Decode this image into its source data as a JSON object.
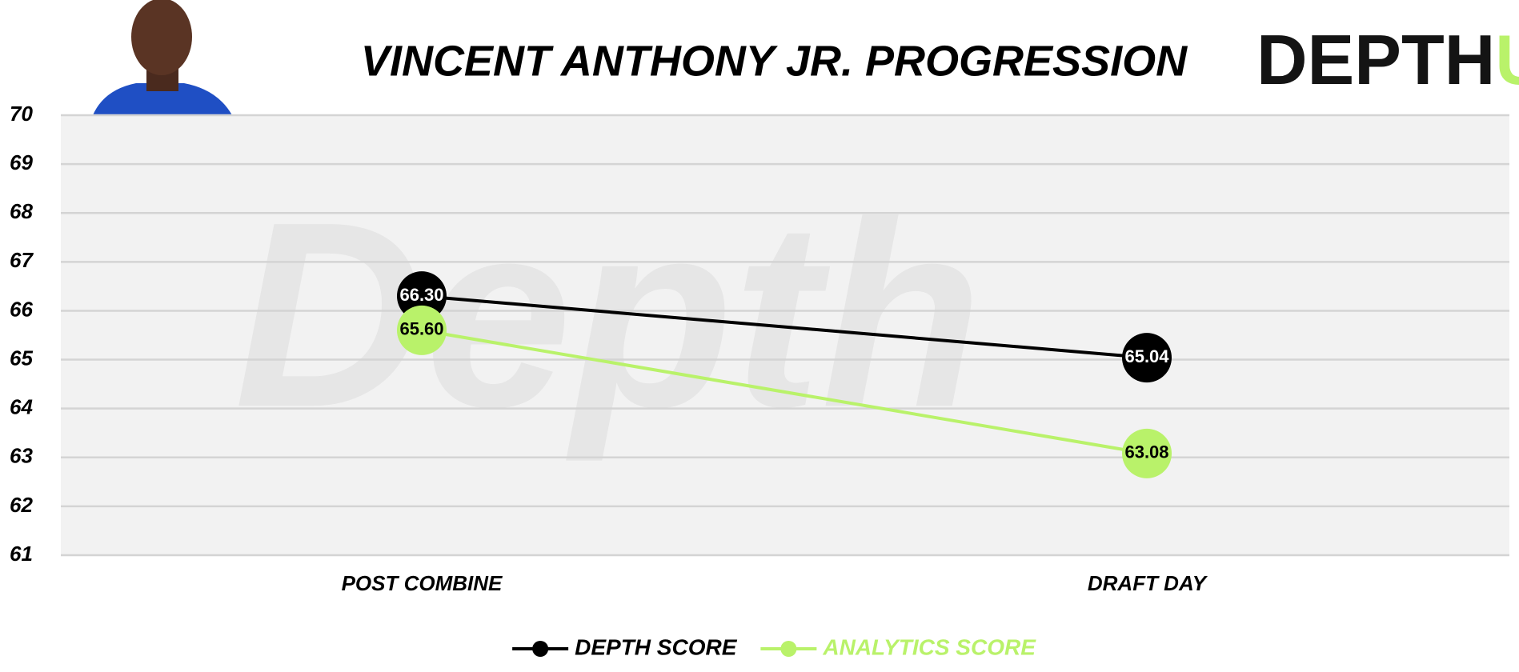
{
  "logo": {
    "text": "DEPTH",
    "accent": "U"
  },
  "watermark": "Depth",
  "chart_data": {
    "type": "line",
    "title": "VINCENT ANTHONY JR. PROGRESSION",
    "categories": [
      "POST COMBINE",
      "DRAFT DAY"
    ],
    "series": [
      {
        "name": "DEPTH SCORE",
        "color": "#000000",
        "values": [
          66.3,
          65.04
        ],
        "value_labels": [
          "66.30",
          "65.04"
        ]
      },
      {
        "name": "ANALYTICS SCORE",
        "color": "#b9f26a",
        "values": [
          65.6,
          63.08
        ],
        "value_labels": [
          "65.60",
          "63.08"
        ]
      }
    ],
    "ylim": [
      61,
      70
    ],
    "yticks": [
      61,
      62,
      63,
      64,
      65,
      66,
      67,
      68,
      69,
      70
    ],
    "grid": true,
    "legend": "bottom"
  }
}
